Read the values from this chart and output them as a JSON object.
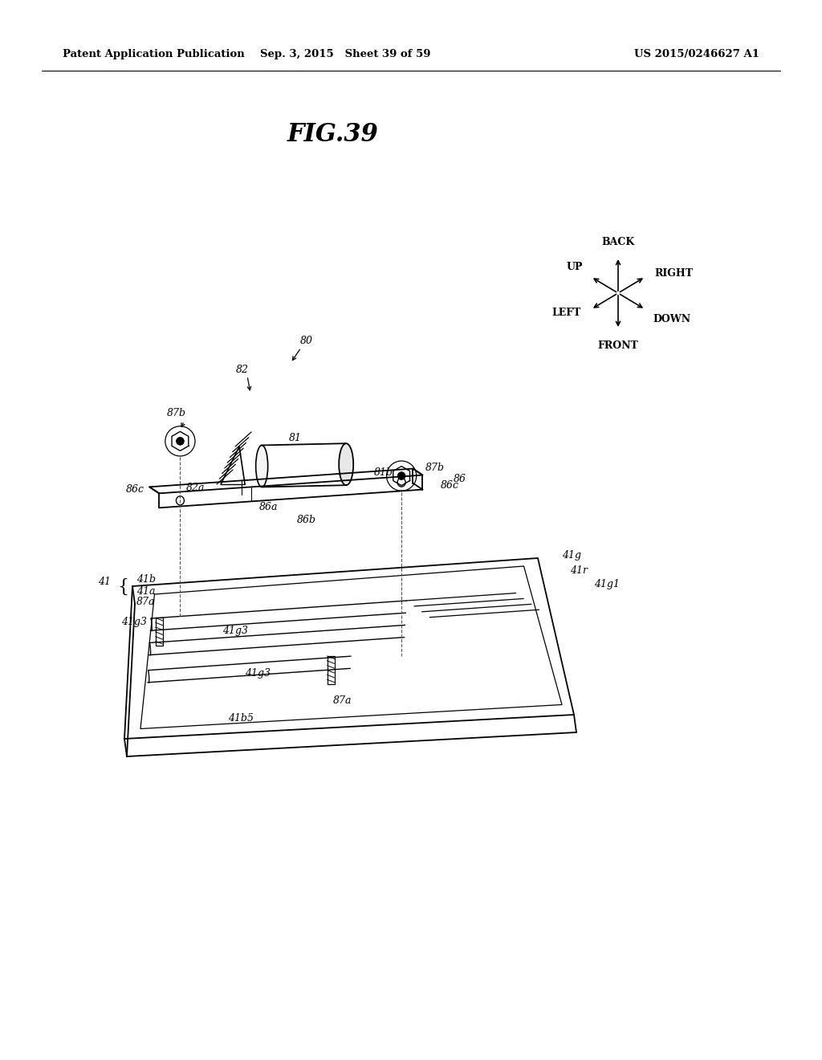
{
  "background_color": "#ffffff",
  "header_left": "Patent Application Publication",
  "header_center": "Sep. 3, 2015   Sheet 39 of 59",
  "header_right": "US 2015/0246627 A1",
  "fig_title": "FIG.39"
}
